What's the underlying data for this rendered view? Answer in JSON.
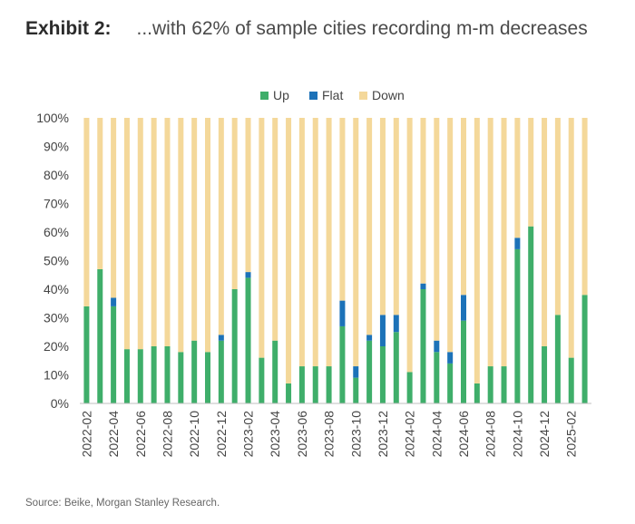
{
  "title": {
    "label": "Exhibit 2:",
    "text": "...with 62% of sample cities recording m-m decreases"
  },
  "source": "Source: Beike, Morgan Stanley Research.",
  "colors": {
    "up": "#3fae6a",
    "flat": "#1c72b8",
    "down": "#f4d89a",
    "axis": "#bfbfbf",
    "text": "#444444"
  },
  "chart_data": {
    "type": "bar",
    "stacked": true,
    "title": "...with 62% of sample cities recording m-m decreases",
    "xlabel": "",
    "ylabel": "",
    "ylim": [
      0,
      100
    ],
    "y_ticks": [
      "0%",
      "10%",
      "20%",
      "30%",
      "40%",
      "50%",
      "60%",
      "70%",
      "80%",
      "90%",
      "100%"
    ],
    "legend": {
      "position": "top",
      "entries": [
        "Up",
        "Flat",
        "Down"
      ]
    },
    "categories": [
      "2022-02",
      "2022-03",
      "2022-04",
      "2022-05",
      "2022-06",
      "2022-07",
      "2022-08",
      "2022-09",
      "2022-10",
      "2022-11",
      "2022-12",
      "2023-01",
      "2023-02",
      "2023-03",
      "2023-04",
      "2023-05",
      "2023-06",
      "2023-07",
      "2023-08",
      "2023-09",
      "2023-10",
      "2023-11",
      "2023-12",
      "2024-01",
      "2024-02",
      "2024-03",
      "2024-04",
      "2024-05",
      "2024-06",
      "2024-07",
      "2024-08",
      "2024-09",
      "2024-10",
      "2024-11",
      "2024-12",
      "2025-01",
      "2025-02",
      "2025-03"
    ],
    "x_tick_labels": [
      "2022-02",
      "2022-04",
      "2022-06",
      "2022-08",
      "2022-10",
      "2022-12",
      "2023-02",
      "2023-04",
      "2023-06",
      "2023-08",
      "2023-10",
      "2023-12",
      "2024-02",
      "2024-04",
      "2024-06",
      "2024-08",
      "2024-10",
      "2024-12",
      "2025-02"
    ],
    "series": [
      {
        "name": "Up",
        "values": [
          34,
          47,
          34,
          19,
          19,
          20,
          20,
          18,
          22,
          18,
          22,
          40,
          44,
          16,
          22,
          7,
          13,
          13,
          13,
          27,
          9,
          22,
          20,
          25,
          11,
          40,
          18,
          14,
          29,
          7,
          13,
          13,
          54,
          62,
          20,
          31,
          16,
          38
        ]
      },
      {
        "name": "Flat",
        "values": [
          0,
          0,
          3,
          0,
          0,
          0,
          0,
          0,
          0,
          0,
          2,
          0,
          2,
          0,
          0,
          0,
          0,
          0,
          0,
          9,
          4,
          2,
          11,
          6,
          0,
          2,
          4,
          4,
          9,
          0,
          0,
          0,
          4,
          0,
          0,
          0,
          0,
          0
        ]
      },
      {
        "name": "Down",
        "values": [
          66,
          53,
          63,
          81,
          81,
          80,
          80,
          82,
          78,
          82,
          76,
          60,
          54,
          84,
          78,
          93,
          87,
          87,
          87,
          64,
          87,
          76,
          69,
          69,
          89,
          58,
          78,
          82,
          62,
          93,
          87,
          87,
          42,
          38,
          80,
          69,
          84,
          62
        ]
      }
    ]
  }
}
